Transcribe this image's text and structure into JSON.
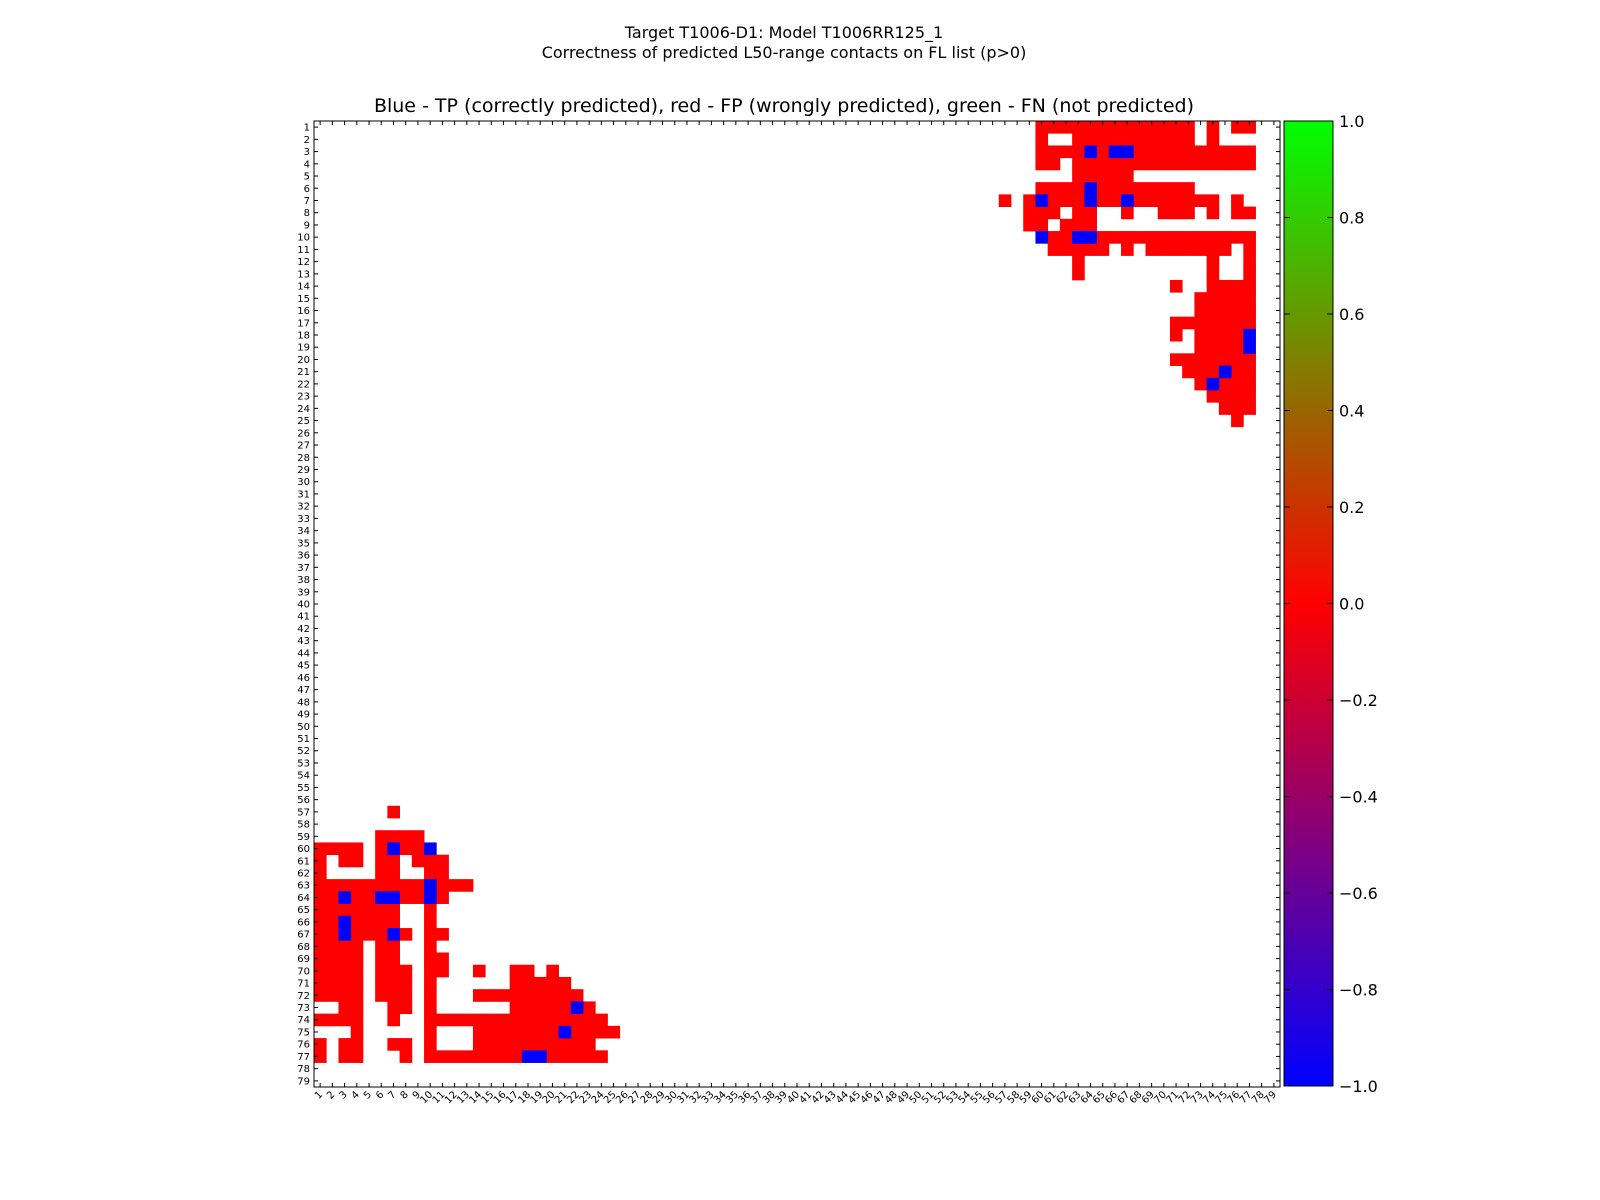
{
  "title": {
    "line1": "Target T1006-D1: Model T1006RR125_1",
    "line2": "Correctness of predicted L50-range contacts on FL list (p>0)",
    "subtitle": "Blue - TP (correctly predicted), red - FP (wrongly predicted), green - FN (not predicted)"
  },
  "chart_data": {
    "type": "heatmap",
    "n": 79,
    "x_range": [
      1,
      79
    ],
    "y_range": [
      1,
      79
    ],
    "y_axis_inverted": true,
    "grid": false,
    "colormap": {
      "min": -1.0,
      "max": 1.0,
      "colors": [
        "#0000ff",
        "#ff0000",
        "#00ff00"
      ]
    },
    "colorbar_ticks": [
      "1.0",
      "0.8",
      "0.6",
      "0.4",
      "0.2",
      "0.0",
      "−0.2",
      "−0.4",
      "−0.6",
      "−0.8",
      "−1.0"
    ],
    "legend": {
      "tp": "Blue - TP (correctly predicted)",
      "fp": "red - FP (wrongly predicted)",
      "fn": "green - FN (not predicted)"
    },
    "fp_cells": [
      [
        1,
        60
      ],
      [
        1,
        61
      ],
      [
        1,
        62
      ],
      [
        1,
        63
      ],
      [
        1,
        64
      ],
      [
        1,
        65
      ],
      [
        1,
        66
      ],
      [
        1,
        67
      ],
      [
        1,
        68
      ],
      [
        1,
        69
      ],
      [
        1,
        70
      ],
      [
        1,
        71
      ],
      [
        1,
        72
      ],
      [
        1,
        74
      ],
      [
        1,
        76
      ],
      [
        1,
        77
      ],
      [
        2,
        60
      ],
      [
        2,
        63
      ],
      [
        2,
        64
      ],
      [
        2,
        65
      ],
      [
        2,
        66
      ],
      [
        2,
        67
      ],
      [
        2,
        68
      ],
      [
        2,
        69
      ],
      [
        2,
        70
      ],
      [
        2,
        71
      ],
      [
        2,
        72
      ],
      [
        2,
        74
      ],
      [
        3,
        60
      ],
      [
        3,
        61
      ],
      [
        3,
        62
      ],
      [
        3,
        63
      ],
      [
        3,
        65
      ],
      [
        3,
        68
      ],
      [
        3,
        69
      ],
      [
        3,
        70
      ],
      [
        3,
        71
      ],
      [
        3,
        72
      ],
      [
        3,
        73
      ],
      [
        3,
        74
      ],
      [
        3,
        75
      ],
      [
        3,
        76
      ],
      [
        3,
        77
      ],
      [
        4,
        60
      ],
      [
        4,
        61
      ],
      [
        4,
        63
      ],
      [
        4,
        64
      ],
      [
        4,
        65
      ],
      [
        4,
        66
      ],
      [
        4,
        67
      ],
      [
        4,
        68
      ],
      [
        4,
        69
      ],
      [
        4,
        70
      ],
      [
        4,
        71
      ],
      [
        4,
        72
      ],
      [
        4,
        73
      ],
      [
        4,
        74
      ],
      [
        4,
        75
      ],
      [
        4,
        76
      ],
      [
        4,
        77
      ],
      [
        5,
        63
      ],
      [
        5,
        64
      ],
      [
        5,
        65
      ],
      [
        5,
        66
      ],
      [
        5,
        67
      ],
      [
        6,
        60
      ],
      [
        6,
        61
      ],
      [
        6,
        62
      ],
      [
        6,
        63
      ],
      [
        6,
        65
      ],
      [
        6,
        66
      ],
      [
        6,
        67
      ],
      [
        6,
        68
      ],
      [
        6,
        69
      ],
      [
        6,
        70
      ],
      [
        6,
        71
      ],
      [
        6,
        72
      ],
      [
        7,
        57
      ],
      [
        7,
        59
      ],
      [
        7,
        61
      ],
      [
        7,
        62
      ],
      [
        7,
        63
      ],
      [
        7,
        65
      ],
      [
        7,
        66
      ],
      [
        7,
        68
      ],
      [
        7,
        69
      ],
      [
        7,
        70
      ],
      [
        7,
        71
      ],
      [
        7,
        72
      ],
      [
        7,
        73
      ],
      [
        7,
        74
      ],
      [
        7,
        76
      ],
      [
        8,
        59
      ],
      [
        8,
        60
      ],
      [
        8,
        61
      ],
      [
        8,
        63
      ],
      [
        8,
        64
      ],
      [
        8,
        67
      ],
      [
        8,
        70
      ],
      [
        8,
        71
      ],
      [
        8,
        72
      ],
      [
        8,
        74
      ],
      [
        8,
        76
      ],
      [
        8,
        77
      ],
      [
        9,
        59
      ],
      [
        9,
        60
      ],
      [
        9,
        62
      ],
      [
        9,
        63
      ],
      [
        9,
        64
      ],
      [
        10,
        61
      ],
      [
        10,
        62
      ],
      [
        10,
        65
      ],
      [
        10,
        66
      ],
      [
        10,
        67
      ],
      [
        10,
        68
      ],
      [
        10,
        69
      ],
      [
        10,
        70
      ],
      [
        10,
        71
      ],
      [
        10,
        72
      ],
      [
        10,
        73
      ],
      [
        10,
        74
      ],
      [
        10,
        75
      ],
      [
        10,
        76
      ],
      [
        10,
        77
      ],
      [
        11,
        61
      ],
      [
        11,
        62
      ],
      [
        11,
        63
      ],
      [
        11,
        64
      ],
      [
        11,
        65
      ],
      [
        11,
        67
      ],
      [
        11,
        69
      ],
      [
        11,
        70
      ],
      [
        11,
        71
      ],
      [
        11,
        72
      ],
      [
        11,
        73
      ],
      [
        11,
        74
      ],
      [
        11,
        75
      ],
      [
        11,
        77
      ],
      [
        12,
        63
      ],
      [
        12,
        74
      ],
      [
        12,
        77
      ],
      [
        13,
        63
      ],
      [
        13,
        74
      ],
      [
        13,
        77
      ],
      [
        14,
        71
      ],
      [
        14,
        74
      ],
      [
        14,
        75
      ],
      [
        14,
        76
      ],
      [
        14,
        77
      ],
      [
        15,
        73
      ],
      [
        15,
        74
      ],
      [
        15,
        75
      ],
      [
        15,
        76
      ],
      [
        15,
        77
      ],
      [
        16,
        73
      ],
      [
        16,
        74
      ],
      [
        16,
        75
      ],
      [
        16,
        76
      ],
      [
        16,
        77
      ],
      [
        17,
        71
      ],
      [
        17,
        72
      ],
      [
        17,
        73
      ],
      [
        17,
        74
      ],
      [
        17,
        75
      ],
      [
        17,
        76
      ],
      [
        17,
        77
      ],
      [
        18,
        71
      ],
      [
        18,
        73
      ],
      [
        18,
        74
      ],
      [
        18,
        75
      ],
      [
        18,
        76
      ],
      [
        19,
        73
      ],
      [
        19,
        74
      ],
      [
        19,
        75
      ],
      [
        19,
        76
      ],
      [
        20,
        71
      ],
      [
        20,
        72
      ],
      [
        20,
        73
      ],
      [
        20,
        74
      ],
      [
        20,
        75
      ],
      [
        20,
        76
      ],
      [
        20,
        77
      ],
      [
        21,
        72
      ],
      [
        21,
        73
      ],
      [
        21,
        74
      ],
      [
        21,
        76
      ],
      [
        21,
        77
      ],
      [
        22,
        73
      ],
      [
        22,
        75
      ],
      [
        22,
        76
      ],
      [
        22,
        77
      ],
      [
        23,
        74
      ],
      [
        23,
        75
      ],
      [
        23,
        76
      ],
      [
        23,
        77
      ],
      [
        24,
        75
      ],
      [
        24,
        76
      ],
      [
        24,
        77
      ],
      [
        25,
        76
      ],
      [
        57,
        7
      ],
      [
        59,
        6
      ],
      [
        59,
        7
      ],
      [
        59,
        8
      ],
      [
        59,
        9
      ],
      [
        60,
        1
      ],
      [
        60,
        2
      ],
      [
        60,
        3
      ],
      [
        60,
        4
      ],
      [
        60,
        6
      ],
      [
        60,
        8
      ],
      [
        60,
        9
      ],
      [
        61,
        1
      ],
      [
        61,
        3
      ],
      [
        61,
        4
      ],
      [
        61,
        6
      ],
      [
        61,
        7
      ],
      [
        61,
        9
      ],
      [
        61,
        10
      ],
      [
        61,
        11
      ],
      [
        62,
        1
      ],
      [
        62,
        6
      ],
      [
        62,
        7
      ],
      [
        62,
        10
      ],
      [
        62,
        11
      ],
      [
        63,
        1
      ],
      [
        63,
        2
      ],
      [
        63,
        3
      ],
      [
        63,
        4
      ],
      [
        63,
        5
      ],
      [
        63,
        6
      ],
      [
        63,
        7
      ],
      [
        63,
        8
      ],
      [
        63,
        9
      ],
      [
        63,
        11
      ],
      [
        63,
        12
      ],
      [
        63,
        13
      ],
      [
        64,
        1
      ],
      [
        64,
        2
      ],
      [
        64,
        4
      ],
      [
        64,
        5
      ],
      [
        64,
        8
      ],
      [
        64,
        9
      ],
      [
        64,
        11
      ],
      [
        65,
        1
      ],
      [
        65,
        2
      ],
      [
        65,
        3
      ],
      [
        65,
        4
      ],
      [
        65,
        5
      ],
      [
        65,
        6
      ],
      [
        65,
        7
      ],
      [
        65,
        10
      ],
      [
        66,
        1
      ],
      [
        66,
        2
      ],
      [
        66,
        4
      ],
      [
        66,
        5
      ],
      [
        66,
        6
      ],
      [
        66,
        7
      ],
      [
        66,
        10
      ],
      [
        67,
        1
      ],
      [
        67,
        2
      ],
      [
        67,
        4
      ],
      [
        67,
        5
      ],
      [
        67,
        6
      ],
      [
        67,
        8
      ],
      [
        67,
        10
      ],
      [
        67,
        11
      ],
      [
        68,
        1
      ],
      [
        68,
        2
      ],
      [
        68,
        3
      ],
      [
        68,
        4
      ],
      [
        68,
        6
      ],
      [
        68,
        7
      ],
      [
        68,
        10
      ],
      [
        69,
        1
      ],
      [
        69,
        2
      ],
      [
        69,
        3
      ],
      [
        69,
        4
      ],
      [
        69,
        6
      ],
      [
        69,
        7
      ],
      [
        69,
        10
      ],
      [
        69,
        11
      ],
      [
        70,
        1
      ],
      [
        70,
        2
      ],
      [
        70,
        3
      ],
      [
        70,
        4
      ],
      [
        70,
        6
      ],
      [
        70,
        7
      ],
      [
        70,
        8
      ],
      [
        70,
        10
      ],
      [
        70,
        11
      ],
      [
        70,
        14
      ],
      [
        70,
        17
      ],
      [
        70,
        18
      ],
      [
        70,
        20
      ],
      [
        71,
        1
      ],
      [
        71,
        2
      ],
      [
        71,
        3
      ],
      [
        71,
        4
      ],
      [
        71,
        6
      ],
      [
        71,
        7
      ],
      [
        71,
        8
      ],
      [
        71,
        10
      ],
      [
        71,
        17
      ],
      [
        71,
        18
      ],
      [
        71,
        19
      ],
      [
        71,
        20
      ],
      [
        71,
        21
      ],
      [
        72,
        1
      ],
      [
        72,
        2
      ],
      [
        72,
        3
      ],
      [
        72,
        4
      ],
      [
        72,
        6
      ],
      [
        72,
        7
      ],
      [
        72,
        8
      ],
      [
        72,
        10
      ],
      [
        72,
        14
      ],
      [
        72,
        15
      ],
      [
        72,
        16
      ],
      [
        72,
        17
      ],
      [
        72,
        18
      ],
      [
        72,
        19
      ],
      [
        72,
        20
      ],
      [
        72,
        21
      ],
      [
        72,
        22
      ],
      [
        73,
        3
      ],
      [
        73,
        4
      ],
      [
        73,
        7
      ],
      [
        73,
        8
      ],
      [
        73,
        10
      ],
      [
        73,
        17
      ],
      [
        73,
        18
      ],
      [
        73,
        19
      ],
      [
        73,
        20
      ],
      [
        73,
        21
      ],
      [
        73,
        23
      ],
      [
        74,
        1
      ],
      [
        74,
        2
      ],
      [
        74,
        3
      ],
      [
        74,
        4
      ],
      [
        74,
        7
      ],
      [
        74,
        10
      ],
      [
        74,
        11
      ],
      [
        74,
        12
      ],
      [
        74,
        13
      ],
      [
        74,
        14
      ],
      [
        74,
        15
      ],
      [
        74,
        16
      ],
      [
        74,
        17
      ],
      [
        74,
        18
      ],
      [
        74,
        19
      ],
      [
        74,
        20
      ],
      [
        74,
        21
      ],
      [
        74,
        22
      ],
      [
        74,
        23
      ],
      [
        74,
        24
      ],
      [
        75,
        4
      ],
      [
        75,
        10
      ],
      [
        75,
        14
      ],
      [
        75,
        15
      ],
      [
        75,
        16
      ],
      [
        75,
        17
      ],
      [
        75,
        18
      ],
      [
        75,
        19
      ],
      [
        75,
        20
      ],
      [
        75,
        22
      ],
      [
        75,
        23
      ],
      [
        75,
        24
      ],
      [
        75,
        25
      ],
      [
        76,
        1
      ],
      [
        76,
        3
      ],
      [
        76,
        4
      ],
      [
        76,
        7
      ],
      [
        76,
        8
      ],
      [
        76,
        10
      ],
      [
        76,
        14
      ],
      [
        76,
        15
      ],
      [
        76,
        16
      ],
      [
        76,
        17
      ],
      [
        76,
        18
      ],
      [
        76,
        19
      ],
      [
        76,
        20
      ],
      [
        76,
        21
      ],
      [
        76,
        22
      ],
      [
        76,
        23
      ],
      [
        77,
        1
      ],
      [
        77,
        3
      ],
      [
        77,
        4
      ],
      [
        77,
        8
      ],
      [
        77,
        10
      ],
      [
        77,
        11
      ],
      [
        77,
        12
      ],
      [
        77,
        13
      ],
      [
        77,
        14
      ],
      [
        77,
        15
      ],
      [
        77,
        16
      ],
      [
        77,
        17
      ],
      [
        77,
        20
      ],
      [
        77,
        21
      ],
      [
        77,
        22
      ],
      [
        77,
        23
      ],
      [
        77,
        24
      ]
    ],
    "tp_cells": [
      [
        3,
        64
      ],
      [
        3,
        66
      ],
      [
        3,
        67
      ],
      [
        6,
        64
      ],
      [
        7,
        60
      ],
      [
        7,
        64
      ],
      [
        7,
        67
      ],
      [
        10,
        60
      ],
      [
        10,
        63
      ],
      [
        10,
        64
      ],
      [
        18,
        77
      ],
      [
        19,
        77
      ],
      [
        21,
        75
      ],
      [
        22,
        74
      ],
      [
        60,
        7
      ],
      [
        60,
        10
      ],
      [
        63,
        10
      ],
      [
        64,
        3
      ],
      [
        64,
        6
      ],
      [
        64,
        7
      ],
      [
        64,
        10
      ],
      [
        66,
        3
      ],
      [
        67,
        3
      ],
      [
        67,
        7
      ],
      [
        73,
        22
      ],
      [
        75,
        21
      ],
      [
        77,
        18
      ],
      [
        77,
        19
      ]
    ],
    "fn_cells": []
  }
}
